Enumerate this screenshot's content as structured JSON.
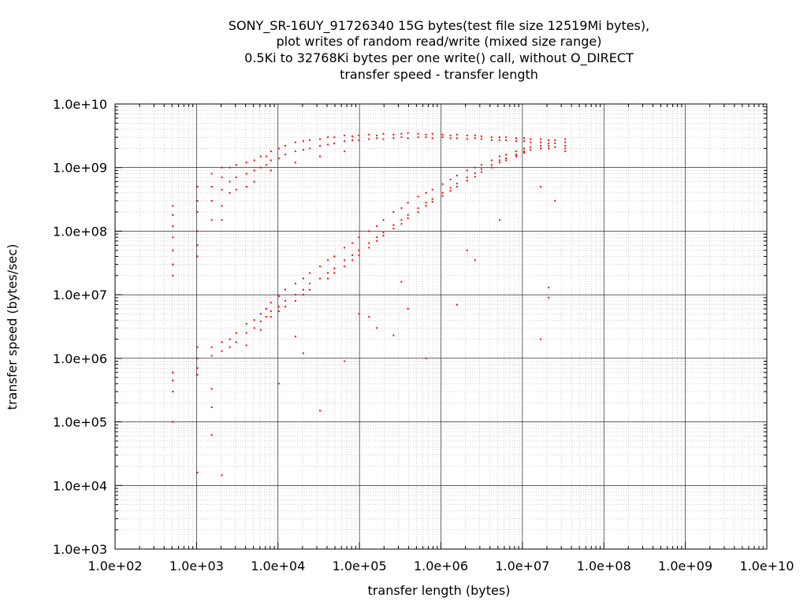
{
  "chart_data": {
    "type": "scatter",
    "title_lines": [
      "SONY_SR-16UY_91726340 15G bytes(test file size 12519Mi bytes),",
      "plot writes of random read/write (mixed size range)",
      "0.5Ki to 32768Ki bytes per one write() call, without O_DIRECT",
      "transfer speed - transfer length"
    ],
    "xlabel": "transfer length (bytes)",
    "ylabel": "transfer speed (bytes/sec)",
    "x_scale": "log",
    "y_scale": "log",
    "xlim": [
      100,
      10000000000
    ],
    "ylim": [
      1000,
      10000000000
    ],
    "x_ticks": [
      "1.0e+02",
      "1.0e+03",
      "1.0e+04",
      "1.0e+05",
      "1.0e+06",
      "1.0e+07",
      "1.0e+08",
      "1.0e+09",
      "1.0e+10"
    ],
    "y_ticks": [
      "1.0e+03",
      "1.0e+04",
      "1.0e+05",
      "1.0e+06",
      "1.0e+07",
      "1.0e+08",
      "1.0e+09",
      "1.0e+10"
    ],
    "grid": true,
    "point_color": "#ff0000",
    "series": [
      {
        "points": [
          [
            512,
            250000000
          ],
          [
            512,
            180000000
          ],
          [
            512,
            120000000
          ],
          [
            512,
            80000000
          ],
          [
            512,
            50000000
          ],
          [
            512,
            30000000
          ],
          [
            512,
            20000000
          ],
          [
            512,
            600000
          ],
          [
            512,
            450000
          ],
          [
            512,
            300000
          ],
          [
            512,
            100000
          ],
          [
            1024,
            500000000
          ],
          [
            1024,
            300000000
          ],
          [
            1024,
            200000000
          ],
          [
            1024,
            100000000
          ],
          [
            1024,
            60000000
          ],
          [
            1024,
            40000000
          ],
          [
            1024,
            1500000
          ],
          [
            1024,
            1000000
          ],
          [
            1024,
            700000
          ],
          [
            1024,
            550000
          ],
          [
            1024,
            16000
          ],
          [
            1536,
            800000000
          ],
          [
            1536,
            500000000
          ],
          [
            1536,
            300000000
          ],
          [
            1536,
            150000000
          ],
          [
            1536,
            1500000
          ],
          [
            1536,
            1100000
          ],
          [
            1536,
            330000
          ],
          [
            1536,
            170000
          ],
          [
            1536,
            62000
          ],
          [
            2048,
            1000000000
          ],
          [
            2048,
            700000000
          ],
          [
            2048,
            450000000
          ],
          [
            2048,
            250000000
          ],
          [
            2048,
            150000000
          ],
          [
            2048,
            1800000
          ],
          [
            2048,
            1300000
          ],
          [
            2048,
            14500
          ],
          [
            2560,
            1000000000
          ],
          [
            2560,
            600000000
          ],
          [
            2560,
            400000000
          ],
          [
            2560,
            2000000
          ],
          [
            2560,
            1500000
          ],
          [
            3072,
            1100000000
          ],
          [
            3072,
            700000000
          ],
          [
            3072,
            450000000
          ],
          [
            3072,
            2500000
          ],
          [
            3072,
            1800000
          ],
          [
            4096,
            1200000000
          ],
          [
            4096,
            800000000
          ],
          [
            4096,
            500000000
          ],
          [
            4096,
            3500000
          ],
          [
            4096,
            2500000
          ],
          [
            4096,
            1600000
          ],
          [
            5120,
            1300000000
          ],
          [
            5120,
            900000000
          ],
          [
            5120,
            600000000
          ],
          [
            5120,
            4000000
          ],
          [
            5120,
            3000000
          ],
          [
            6144,
            1500000000
          ],
          [
            6144,
            1000000000
          ],
          [
            6144,
            5000000
          ],
          [
            6144,
            3800000
          ],
          [
            6144,
            2800000
          ],
          [
            7168,
            1500000000
          ],
          [
            7168,
            1100000000
          ],
          [
            7168,
            6000000
          ],
          [
            7168,
            4500000
          ],
          [
            8192,
            1800000000
          ],
          [
            8192,
            1300000000
          ],
          [
            8192,
            900000000
          ],
          [
            8192,
            7500000
          ],
          [
            8192,
            5500000
          ],
          [
            8192,
            4500000
          ],
          [
            10240,
            2000000000
          ],
          [
            10240,
            1400000000
          ],
          [
            10240,
            9500000
          ],
          [
            10240,
            6500000
          ],
          [
            10240,
            5500000
          ],
          [
            10240,
            400000
          ],
          [
            12288,
            2200000000
          ],
          [
            12288,
            1600000000
          ],
          [
            12288,
            12000000
          ],
          [
            12288,
            8000000
          ],
          [
            12288,
            6500000
          ],
          [
            16384,
            2500000000
          ],
          [
            16384,
            1800000000
          ],
          [
            16384,
            1200000000
          ],
          [
            16384,
            15000000
          ],
          [
            16384,
            10000000
          ],
          [
            16384,
            8000000
          ],
          [
            16384,
            2200000
          ],
          [
            20480,
            2600000000
          ],
          [
            20480,
            1900000000
          ],
          [
            20480,
            18000000
          ],
          [
            20480,
            12000000
          ],
          [
            20480,
            10000000
          ],
          [
            20480,
            1200000
          ],
          [
            24576,
            2700000000
          ],
          [
            24576,
            2000000000
          ],
          [
            24576,
            22000000
          ],
          [
            24576,
            15000000
          ],
          [
            24576,
            12000000
          ],
          [
            32768,
            2800000000
          ],
          [
            32768,
            2200000000
          ],
          [
            32768,
            1500000000
          ],
          [
            32768,
            28000000
          ],
          [
            32768,
            18000000
          ],
          [
            32768,
            150000
          ],
          [
            40960,
            3000000000
          ],
          [
            40960,
            2300000000
          ],
          [
            40960,
            35000000
          ],
          [
            40960,
            22000000
          ],
          [
            40960,
            18000000
          ],
          [
            49152,
            3000000000
          ],
          [
            49152,
            2400000000
          ],
          [
            49152,
            40000000
          ],
          [
            49152,
            26000000
          ],
          [
            49152,
            22000000
          ],
          [
            65536,
            3200000000
          ],
          [
            65536,
            2600000000
          ],
          [
            65536,
            1800000000
          ],
          [
            65536,
            55000000
          ],
          [
            65536,
            35000000
          ],
          [
            65536,
            28000000
          ],
          [
            65536,
            900000
          ],
          [
            81920,
            3100000000
          ],
          [
            81920,
            2700000000
          ],
          [
            81920,
            65000000
          ],
          [
            81920,
            42000000
          ],
          [
            81920,
            35000000
          ],
          [
            98304,
            3200000000
          ],
          [
            98304,
            2700000000
          ],
          [
            98304,
            80000000
          ],
          [
            98304,
            50000000
          ],
          [
            98304,
            42000000
          ],
          [
            98304,
            5000000
          ],
          [
            131072,
            3300000000
          ],
          [
            131072,
            2800000000
          ],
          [
            131072,
            100000000
          ],
          [
            131072,
            65000000
          ],
          [
            131072,
            55000000
          ],
          [
            131072,
            4500000
          ],
          [
            163840,
            3200000000
          ],
          [
            163840,
            2900000000
          ],
          [
            163840,
            120000000
          ],
          [
            163840,
            80000000
          ],
          [
            163840,
            70000000
          ],
          [
            163840,
            3000000
          ],
          [
            196608,
            3400000000
          ],
          [
            196608,
            2800000000
          ],
          [
            196608,
            150000000
          ],
          [
            196608,
            95000000
          ],
          [
            196608,
            85000000
          ],
          [
            262144,
            3300000000
          ],
          [
            262144,
            2900000000
          ],
          [
            262144,
            200000000
          ],
          [
            262144,
            125000000
          ],
          [
            262144,
            110000000
          ],
          [
            262144,
            2300000
          ],
          [
            327680,
            3400000000
          ],
          [
            327680,
            3000000000
          ],
          [
            327680,
            230000000
          ],
          [
            327680,
            150000000
          ],
          [
            327680,
            130000000
          ],
          [
            327680,
            16000000
          ],
          [
            393216,
            3500000000
          ],
          [
            393216,
            2900000000
          ],
          [
            393216,
            280000000
          ],
          [
            393216,
            180000000
          ],
          [
            393216,
            160000000
          ],
          [
            393216,
            6000000
          ],
          [
            524288,
            3400000000
          ],
          [
            524288,
            3000000000
          ],
          [
            524288,
            350000000
          ],
          [
            524288,
            230000000
          ],
          [
            524288,
            200000000
          ],
          [
            655360,
            3300000000
          ],
          [
            655360,
            3000000000
          ],
          [
            655360,
            400000000
          ],
          [
            655360,
            280000000
          ],
          [
            655360,
            250000000
          ],
          [
            655360,
            1000000
          ],
          [
            786432,
            3400000000
          ],
          [
            786432,
            2900000000
          ],
          [
            786432,
            450000000
          ],
          [
            786432,
            320000000
          ],
          [
            786432,
            290000000
          ],
          [
            1048576,
            3300000000
          ],
          [
            1048576,
            3000000000
          ],
          [
            1048576,
            550000000
          ],
          [
            1048576,
            400000000
          ],
          [
            1048576,
            360000000
          ],
          [
            1310720,
            3200000000
          ],
          [
            1310720,
            2900000000
          ],
          [
            1310720,
            650000000
          ],
          [
            1310720,
            480000000
          ],
          [
            1310720,
            430000000
          ],
          [
            1572864,
            3300000000
          ],
          [
            1572864,
            2900000000
          ],
          [
            1572864,
            750000000
          ],
          [
            1572864,
            560000000
          ],
          [
            1572864,
            500000000
          ],
          [
            1572864,
            7000000
          ],
          [
            2097152,
            3200000000
          ],
          [
            2097152,
            2800000000
          ],
          [
            2097152,
            900000000
          ],
          [
            2097152,
            700000000
          ],
          [
            2097152,
            620000000
          ],
          [
            2097152,
            50000000
          ],
          [
            2621440,
            3200000000
          ],
          [
            2621440,
            2900000000
          ],
          [
            2621440,
            1000000000
          ],
          [
            2621440,
            820000000
          ],
          [
            2621440,
            720000000
          ],
          [
            2621440,
            35000000
          ],
          [
            3145728,
            3100000000
          ],
          [
            3145728,
            2800000000
          ],
          [
            3145728,
            1100000000
          ],
          [
            3145728,
            950000000
          ],
          [
            3145728,
            850000000
          ],
          [
            4194304,
            3000000000
          ],
          [
            4194304,
            2700000000
          ],
          [
            4194304,
            1300000000
          ],
          [
            4194304,
            1100000000
          ],
          [
            4194304,
            1000000000
          ],
          [
            5242880,
            3000000000
          ],
          [
            5242880,
            2700000000
          ],
          [
            5242880,
            1500000000
          ],
          [
            5242880,
            1300000000
          ],
          [
            5242880,
            1200000000
          ],
          [
            5242880,
            150000000
          ],
          [
            6291456,
            3000000000
          ],
          [
            6291456,
            2700000000
          ],
          [
            6291456,
            1600000000
          ],
          [
            6291456,
            1400000000
          ],
          [
            6291456,
            1300000000
          ],
          [
            8388608,
            2900000000
          ],
          [
            8388608,
            2600000000
          ],
          [
            8388608,
            1800000000
          ],
          [
            8388608,
            1600000000
          ],
          [
            8388608,
            1500000000
          ],
          [
            10485760,
            2900000000
          ],
          [
            10485760,
            2600000000
          ],
          [
            10485760,
            2000000000
          ],
          [
            10485760,
            1800000000
          ],
          [
            10485760,
            1700000000
          ],
          [
            12582912,
            2800000000
          ],
          [
            12582912,
            2500000000
          ],
          [
            12582912,
            2100000000
          ],
          [
            12582912,
            1900000000
          ],
          [
            16777216,
            2800000000
          ],
          [
            16777216,
            2500000000
          ],
          [
            16777216,
            2200000000
          ],
          [
            16777216,
            2000000000
          ],
          [
            16777216,
            500000000
          ],
          [
            16777216,
            2000000
          ],
          [
            20971520,
            2700000000
          ],
          [
            20971520,
            2400000000
          ],
          [
            20971520,
            2200000000
          ],
          [
            20971520,
            2000000000
          ],
          [
            20971520,
            9000000
          ],
          [
            20971520,
            13000000
          ],
          [
            25165824,
            2700000000
          ],
          [
            25165824,
            2400000000
          ],
          [
            25165824,
            2100000000
          ],
          [
            25165824,
            300000000
          ],
          [
            33554432,
            2800000000
          ],
          [
            33554432,
            2500000000
          ],
          [
            33554432,
            2200000000
          ],
          [
            33554432,
            2000000000
          ],
          [
            33554432,
            1800000000
          ]
        ]
      }
    ]
  }
}
